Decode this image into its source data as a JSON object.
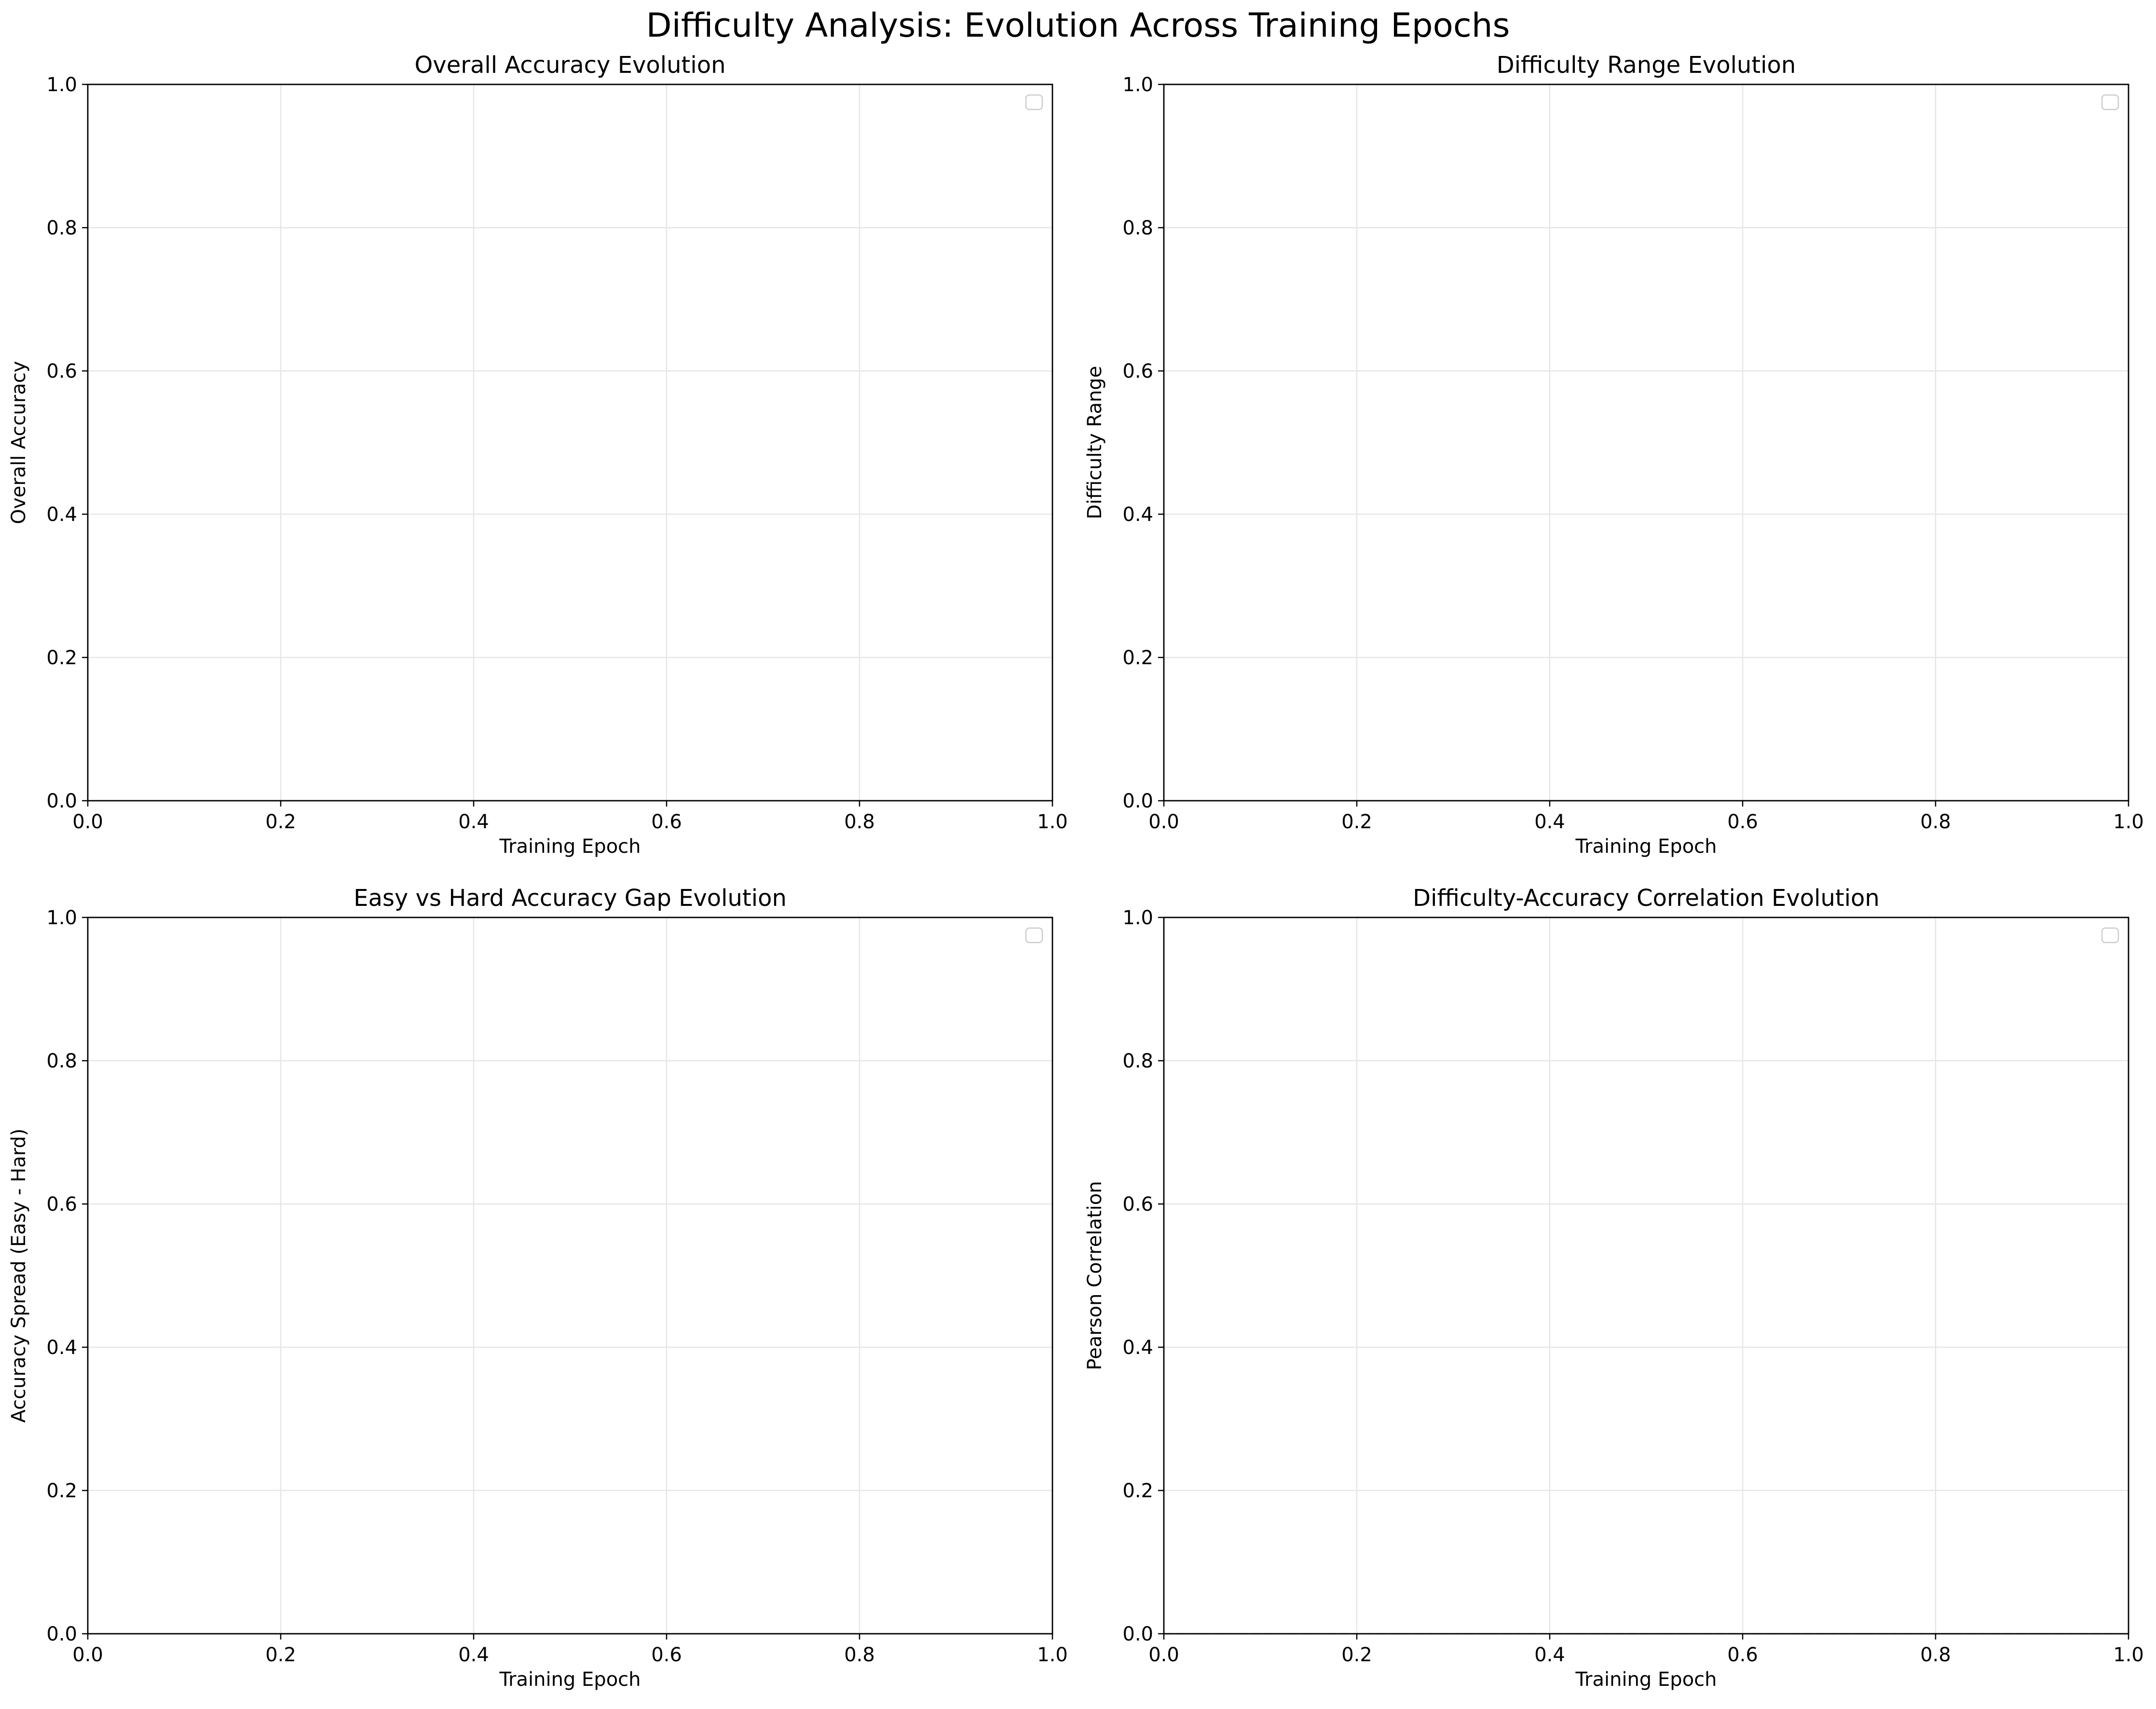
{
  "figure": {
    "title": "Difficulty Analysis: Evolution Across Training Epochs"
  },
  "chart_data": [
    {
      "type": "line",
      "title": "Overall Accuracy Evolution",
      "xlabel": "Training Epoch",
      "ylabel": "Overall Accuracy",
      "xlim": [
        0.0,
        1.0
      ],
      "ylim": [
        0.0,
        1.0
      ],
      "xticks": [
        "0.0",
        "0.2",
        "0.4",
        "0.6",
        "0.8",
        "1.0"
      ],
      "yticks": [
        "0.0",
        "0.2",
        "0.4",
        "0.6",
        "0.8",
        "1.0"
      ],
      "grid": true,
      "legend": "upper right (empty)",
      "series": [],
      "reference_lines": []
    },
    {
      "type": "line",
      "title": "Difficulty Range Evolution",
      "xlabel": "Training Epoch",
      "ylabel": "Difficulty Range",
      "xlim": [
        0.0,
        1.0
      ],
      "ylim": [
        0.0,
        1.0
      ],
      "xticks": [
        "0.0",
        "0.2",
        "0.4",
        "0.6",
        "0.8",
        "1.0"
      ],
      "yticks": [
        "0.0",
        "0.2",
        "0.4",
        "0.6",
        "0.8",
        "1.0"
      ],
      "grid": true,
      "legend": "upper right (empty)",
      "series": [],
      "reference_lines": []
    },
    {
      "type": "line",
      "title": "Easy vs Hard Accuracy Gap Evolution",
      "xlabel": "Training Epoch",
      "ylabel": "Accuracy Spread (Easy - Hard)",
      "xlim": [
        0.0,
        1.0
      ],
      "ylim": [
        0.0,
        1.0
      ],
      "xticks": [
        "0.0",
        "0.2",
        "0.4",
        "0.6",
        "0.8",
        "1.0"
      ],
      "yticks": [
        "0.0",
        "0.2",
        "0.4",
        "0.6",
        "0.8",
        "1.0"
      ],
      "grid": true,
      "legend": "upper right (empty)",
      "series": [],
      "reference_lines": []
    },
    {
      "type": "line",
      "title": "Difficulty-Accuracy Correlation Evolution",
      "xlabel": "Training Epoch",
      "ylabel": "Pearson Correlation",
      "xlim": [
        0.0,
        1.0
      ],
      "ylim": [
        0.0,
        1.0
      ],
      "xticks": [
        "0.0",
        "0.2",
        "0.4",
        "0.6",
        "0.8",
        "1.0"
      ],
      "yticks": [
        "0.0",
        "0.2",
        "0.4",
        "0.6",
        "0.8",
        "1.0"
      ],
      "grid": true,
      "legend": "upper right (empty)",
      "series": [],
      "reference_lines": [
        {
          "axis": "y",
          "value": 0,
          "style": "dashed",
          "color": "#000000"
        }
      ]
    }
  ]
}
